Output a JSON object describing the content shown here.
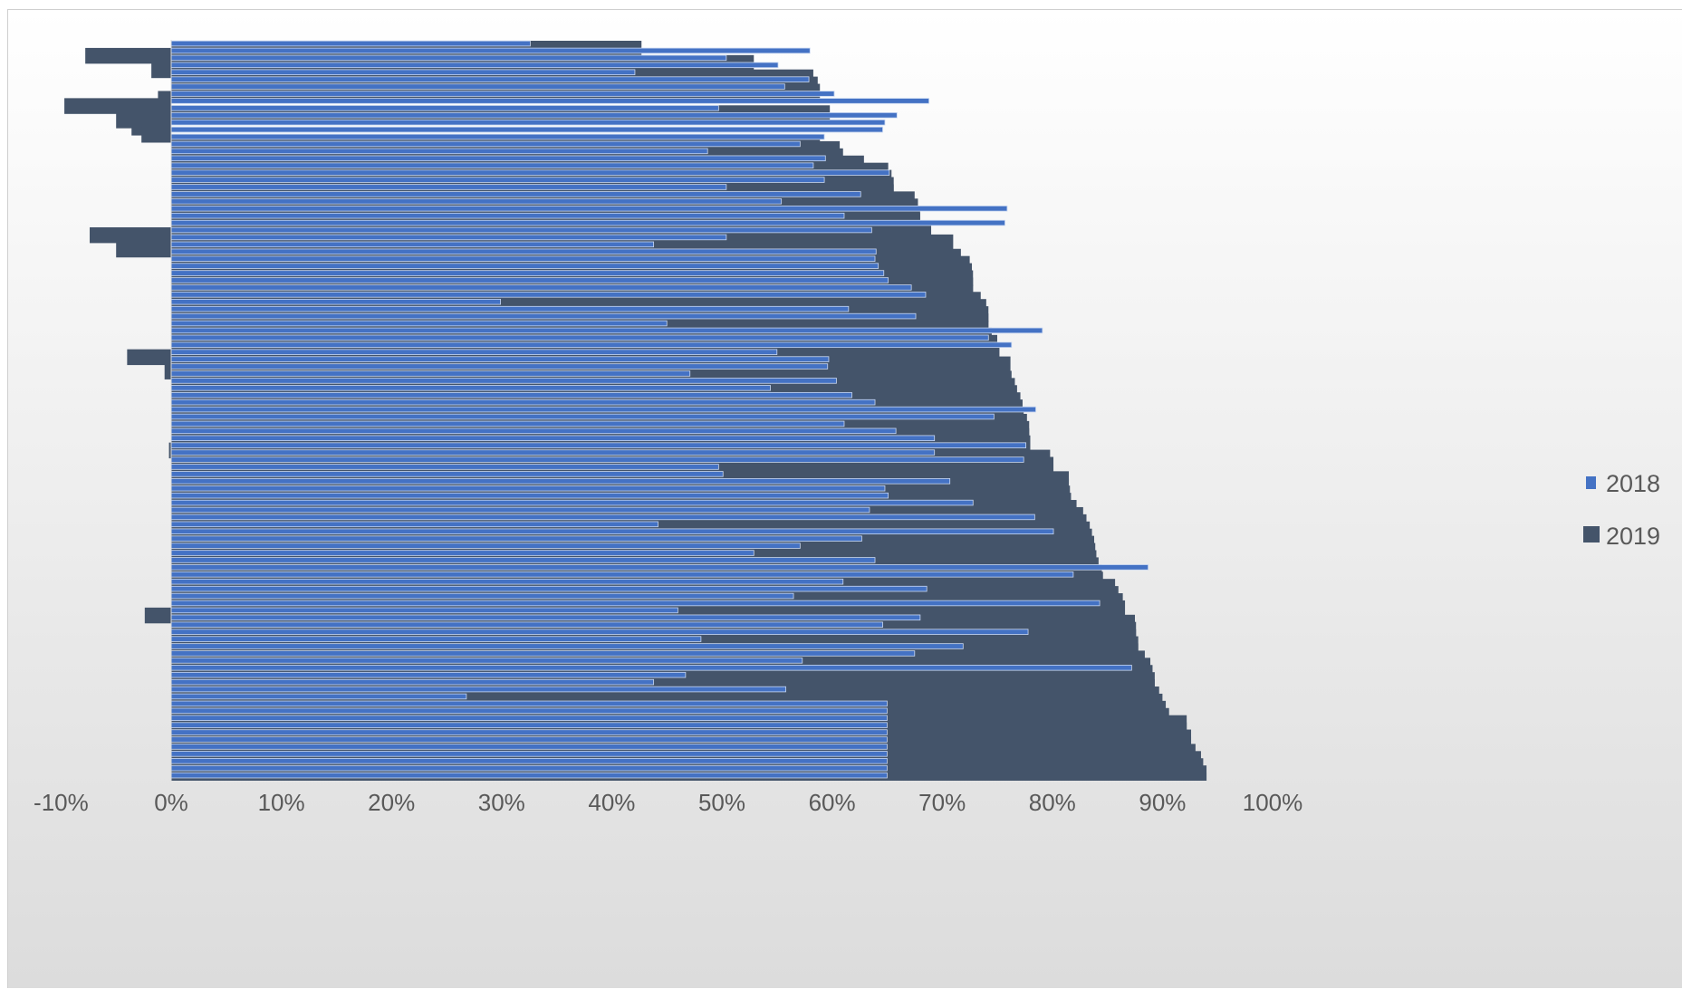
{
  "chart_data": {
    "type": "bar",
    "orientation": "horizontal",
    "title": "",
    "xlabel": "",
    "ylabel": "",
    "xlim": [
      -0.1,
      1.0
    ],
    "tick_values": [
      -0.1,
      0,
      0.1,
      0.2,
      0.3,
      0.4,
      0.5,
      0.6,
      0.7,
      0.8,
      0.9,
      1.0
    ],
    "tick_labels": [
      "-10%",
      "0%",
      "10%",
      "20%",
      "30%",
      "40%",
      "50%",
      "60%",
      "70%",
      "80%",
      "90%",
      "100%"
    ],
    "grid": false,
    "legend_position": "right",
    "series": [
      {
        "name": "2019",
        "color": "#44546a",
        "values": [
          0.427,
          -0.078,
          0.529,
          -0.018,
          0.583,
          0.587,
          0.589,
          -0.012,
          -0.097,
          0.598,
          -0.05,
          -0.036,
          -0.027,
          0.589,
          0.607,
          0.61,
          0.629,
          0.651,
          0.654,
          0.656,
          0.656,
          0.675,
          0.678,
          0.68,
          0.68,
          0.69,
          -0.074,
          0.71,
          -0.05,
          0.717,
          0.725,
          0.727,
          0.728,
          0.728,
          0.728,
          0.735,
          0.74,
          0.742,
          0.742,
          0.742,
          0.745,
          0.75,
          0.752,
          -0.04,
          0.762,
          -0.006,
          0.763,
          0.766,
          0.768,
          0.771,
          0.773,
          0.774,
          0.777,
          0.779,
          0.779,
          0.78,
          -0.002,
          0.798,
          0.801,
          0.801,
          0.815,
          0.815,
          0.816,
          0.817,
          0.822,
          0.828,
          0.831,
          0.834,
          0.836,
          0.838,
          0.839,
          0.84,
          0.842,
          0.845,
          0.846,
          0.857,
          0.86,
          0.864,
          0.866,
          -0.024,
          0.875,
          0.876,
          0.876,
          0.878,
          0.878,
          0.884,
          0.889,
          0.891,
          0.893,
          0.893,
          0.897,
          0.9,
          0.903,
          0.906,
          0.922,
          0.922,
          0.926,
          0.926,
          0.93,
          0.935,
          0.937,
          0.94,
          0.94
        ]
      },
      {
        "name": "2018",
        "color": "#4472c4",
        "values": [
          0.326,
          0.58,
          0.504,
          0.551,
          0.421,
          0.579,
          0.557,
          0.602,
          0.688,
          0.497,
          0.659,
          0.648,
          0.646,
          0.593,
          0.571,
          0.487,
          0.594,
          0.583,
          0.652,
          0.593,
          0.504,
          0.626,
          0.554,
          0.759,
          0.611,
          0.757,
          0.636,
          0.504,
          0.438,
          0.64,
          0.639,
          0.642,
          0.647,
          0.651,
          0.672,
          0.685,
          0.299,
          0.615,
          0.676,
          0.45,
          0.791,
          0.742,
          0.763,
          0.55,
          0.597,
          0.596,
          0.471,
          0.604,
          0.544,
          0.618,
          0.639,
          0.785,
          0.747,
          0.611,
          0.658,
          0.693,
          0.776,
          0.693,
          0.774,
          0.497,
          0.501,
          0.707,
          0.648,
          0.651,
          0.728,
          0.634,
          0.784,
          0.442,
          0.801,
          0.627,
          0.571,
          0.529,
          0.639,
          0.887,
          0.819,
          0.61,
          0.686,
          0.565,
          0.843,
          0.46,
          0.68,
          0.646,
          0.778,
          0.481,
          0.719,
          0.675,
          0.573,
          0.872,
          0.467,
          0.438,
          0.558,
          0.268,
          0.65,
          0.65,
          0.65,
          0.65,
          0.65,
          0.65,
          0.65,
          0.65,
          0.65,
          0.65,
          0.65
        ]
      }
    ]
  }
}
